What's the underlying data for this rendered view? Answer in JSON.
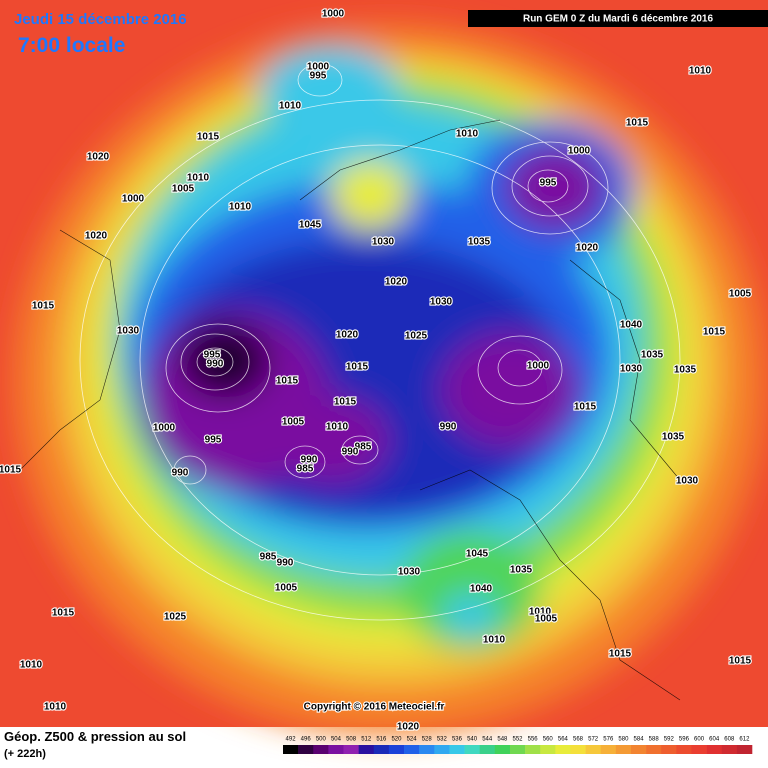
{
  "header": {
    "date": "Jeudi 15 décembre 2016",
    "time": "7:00 locale",
    "run": "Run GEM 0 Z du Mardi 6 décembre 2016"
  },
  "map": {
    "pressure_labels": [
      "1000",
      "1000",
      "995",
      "1010",
      "1015",
      "1020",
      "1010",
      "1005",
      "1000",
      "1010",
      "1045",
      "1030",
      "1020",
      "1015",
      "1030",
      "995",
      "990",
      "1015",
      "1015",
      "1020",
      "1025",
      "1030",
      "1020",
      "1010",
      "1035",
      "1000",
      "995",
      "1020",
      "1015",
      "1010",
      "1005",
      "1035",
      "1030",
      "1040",
      "1035",
      "1015",
      "1000",
      "1015",
      "990",
      "1015",
      "1005",
      "1010",
      "985",
      "990",
      "1000",
      "995",
      "990",
      "990",
      "985",
      "1035",
      "1030",
      "1015",
      "985",
      "990",
      "1005",
      "1030",
      "1045",
      "1035",
      "1040",
      "1010",
      "1005",
      "1010",
      "1015",
      "1015",
      "1015",
      "1025",
      "1010",
      "1010",
      "1020"
    ],
    "copyright": "Copyright © 2016 Meteociel.fr"
  },
  "footer": {
    "title": "Géop. Z500 & pression au sol",
    "lead": "(+ 222h)"
  },
  "colorbar": {
    "labels": [
      492,
      496,
      500,
      504,
      508,
      512,
      516,
      520,
      524,
      528,
      532,
      536,
      540,
      544,
      548,
      552,
      556,
      560,
      564,
      568,
      572,
      576,
      580,
      584,
      588,
      592,
      596,
      600,
      604,
      608,
      612
    ],
    "colors": [
      "#000000",
      "#300040",
      "#5a0070",
      "#7a10a0",
      "#9020b0",
      "#2a10a0",
      "#1a2ab8",
      "#1a40d8",
      "#2060e8",
      "#2a88f0",
      "#30a8f0",
      "#38c8e8",
      "#40d8c0",
      "#3ad08a",
      "#40d25a",
      "#70d850",
      "#a0e048",
      "#c8e840",
      "#e8ec3a",
      "#f4e03a",
      "#f6c83a",
      "#f6b038",
      "#f49a34",
      "#f28430",
      "#f0702e",
      "#ee5e2e",
      "#ec4c2e",
      "#ea3e30",
      "#e03030",
      "#d02a30",
      "#c02430"
    ]
  }
}
